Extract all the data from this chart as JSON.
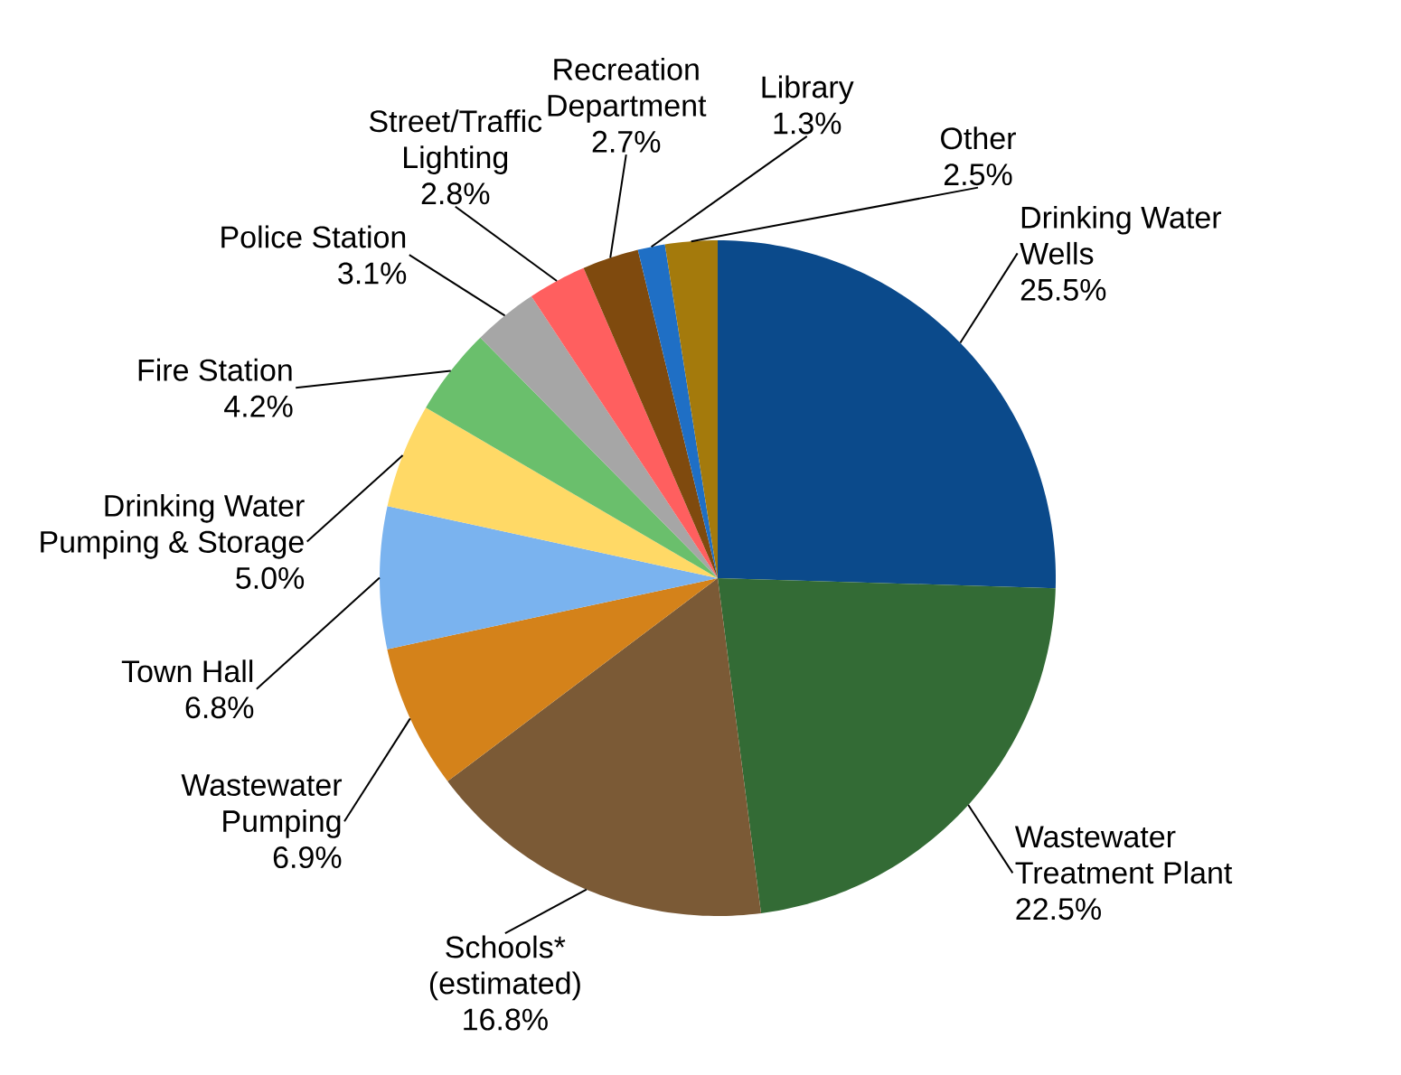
{
  "chart_data": {
    "type": "pie",
    "categories": [
      "Drinking Water Wells",
      "Wastewater Treatment Plant",
      "Schools* (estimated)",
      "Wastewater Pumping",
      "Town Hall",
      "Drinking Water Pumping & Storage",
      "Fire Station",
      "Police Station",
      "Street/Traffic Lighting",
      "Recreation Department",
      "Library",
      "Other"
    ],
    "values": [
      25.5,
      22.5,
      16.8,
      6.9,
      6.8,
      5.0,
      4.2,
      3.1,
      2.8,
      2.7,
      1.3,
      2.5
    ],
    "value_labels": [
      "25.5%",
      "22.5%",
      "16.8%",
      "6.9%",
      "6.8%",
      "5.0%",
      "4.2%",
      "3.1%",
      "2.8%",
      "2.7%",
      "1.3%",
      "2.5%"
    ],
    "colors": [
      "#0b4a8b",
      "#336b35",
      "#7b5a36",
      "#d4821a",
      "#7ab3ef",
      "#ffd966",
      "#6abf6c",
      "#a6a6a6",
      "#ff5f5f",
      "#7f4a0e",
      "#1f6fc5",
      "#a47a0c"
    ]
  }
}
